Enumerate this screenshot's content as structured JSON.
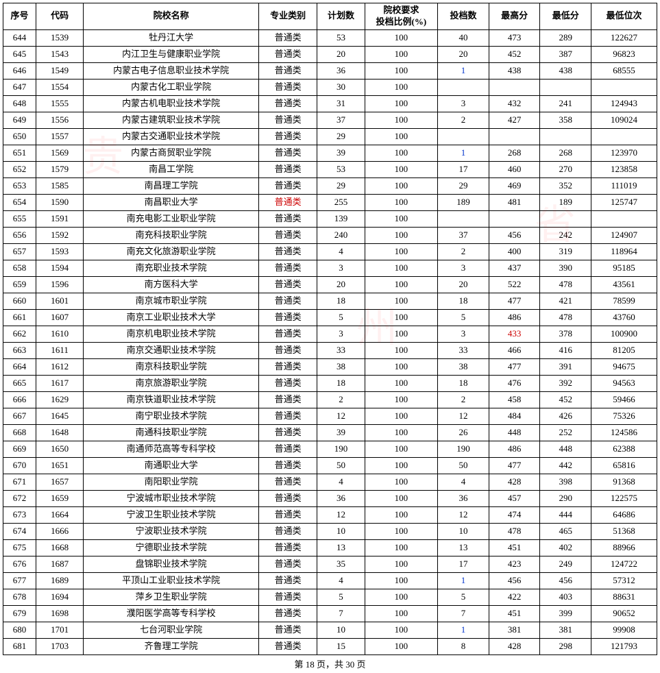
{
  "columns": [
    "序号",
    "代码",
    "院校名称",
    "专业类别",
    "计划数",
    "院校要求\n投档比例(%)",
    "投档数",
    "最高分",
    "最低分",
    "最低位次"
  ],
  "rows": [
    {
      "seq": "644",
      "code": "1539",
      "name": "牡丹江大学",
      "major": "普通类",
      "plan": "53",
      "ratio": "100",
      "toudang": "40",
      "max": "473",
      "min": "289",
      "rank": "122627"
    },
    {
      "seq": "645",
      "code": "1543",
      "name": "内江卫生与健康职业学院",
      "major": "普通类",
      "plan": "20",
      "ratio": "100",
      "toudang": "20",
      "max": "452",
      "min": "387",
      "rank": "96823"
    },
    {
      "seq": "646",
      "code": "1549",
      "name": "内蒙古电子信息职业技术学院",
      "major": "普通类",
      "plan": "36",
      "ratio": "100",
      "toudang": "1",
      "toudang_link": true,
      "max": "438",
      "min": "438",
      "rank": "68555"
    },
    {
      "seq": "647",
      "code": "1554",
      "name": "内蒙古化工职业学院",
      "major": "普通类",
      "plan": "30",
      "ratio": "100",
      "toudang": "",
      "max": "",
      "min": "",
      "rank": ""
    },
    {
      "seq": "648",
      "code": "1555",
      "name": "内蒙古机电职业技术学院",
      "major": "普通类",
      "plan": "31",
      "ratio": "100",
      "toudang": "3",
      "max": "432",
      "min": "241",
      "rank": "124943"
    },
    {
      "seq": "649",
      "code": "1556",
      "name": "内蒙古建筑职业技术学院",
      "major": "普通类",
      "plan": "37",
      "ratio": "100",
      "toudang": "2",
      "max": "427",
      "min": "358",
      "rank": "109024"
    },
    {
      "seq": "650",
      "code": "1557",
      "name": "内蒙古交通职业技术学院",
      "major": "普通类",
      "plan": "29",
      "ratio": "100",
      "toudang": "",
      "max": "",
      "min": "",
      "rank": ""
    },
    {
      "seq": "651",
      "code": "1569",
      "name": "内蒙古商贸职业学院",
      "major": "普通类",
      "plan": "39",
      "ratio": "100",
      "toudang": "1",
      "toudang_link": true,
      "max": "268",
      "min": "268",
      "rank": "123970"
    },
    {
      "seq": "652",
      "code": "1579",
      "name": "南昌工学院",
      "major": "普通类",
      "plan": "53",
      "ratio": "100",
      "toudang": "17",
      "max": "460",
      "min": "270",
      "rank": "123858"
    },
    {
      "seq": "653",
      "code": "1585",
      "name": "南昌理工学院",
      "major": "普通类",
      "plan": "29",
      "ratio": "100",
      "toudang": "29",
      "max": "469",
      "min": "352",
      "rank": "111019"
    },
    {
      "seq": "654",
      "code": "1590",
      "name": "南昌职业大学",
      "major": "普通类",
      "major_red": true,
      "plan": "255",
      "ratio": "100",
      "toudang": "189",
      "max": "481",
      "min": "189",
      "rank": "125747"
    },
    {
      "seq": "655",
      "code": "1591",
      "name": "南充电影工业职业学院",
      "major": "普通类",
      "plan": "139",
      "ratio": "100",
      "toudang": "",
      "max": "",
      "min": "",
      "rank": ""
    },
    {
      "seq": "656",
      "code": "1592",
      "name": "南充科技职业学院",
      "major": "普通类",
      "plan": "240",
      "ratio": "100",
      "toudang": "37",
      "max": "456",
      "min": "242",
      "rank": "124907"
    },
    {
      "seq": "657",
      "code": "1593",
      "name": "南充文化旅游职业学院",
      "major": "普通类",
      "plan": "4",
      "ratio": "100",
      "toudang": "2",
      "max": "400",
      "min": "319",
      "rank": "118964"
    },
    {
      "seq": "658",
      "code": "1594",
      "name": "南充职业技术学院",
      "major": "普通类",
      "plan": "3",
      "ratio": "100",
      "toudang": "3",
      "max": "437",
      "min": "390",
      "rank": "95185"
    },
    {
      "seq": "659",
      "code": "1596",
      "name": "南方医科大学",
      "major": "普通类",
      "plan": "20",
      "ratio": "100",
      "toudang": "20",
      "max": "522",
      "min": "478",
      "rank": "43561"
    },
    {
      "seq": "660",
      "code": "1601",
      "name": "南京城市职业学院",
      "major": "普通类",
      "plan": "18",
      "ratio": "100",
      "toudang": "18",
      "max": "477",
      "min": "421",
      "rank": "78599"
    },
    {
      "seq": "661",
      "code": "1607",
      "name": "南京工业职业技术大学",
      "major": "普通类",
      "plan": "5",
      "ratio": "100",
      "toudang": "5",
      "max": "486",
      "min": "478",
      "rank": "43760"
    },
    {
      "seq": "662",
      "code": "1610",
      "name": "南京机电职业技术学院",
      "major": "普通类",
      "plan": "3",
      "ratio": "100",
      "toudang": "3",
      "max": "433",
      "max_red": true,
      "min": "378",
      "rank": "100900"
    },
    {
      "seq": "663",
      "code": "1611",
      "name": "南京交通职业技术学院",
      "major": "普通类",
      "plan": "33",
      "ratio": "100",
      "toudang": "33",
      "max": "466",
      "min": "416",
      "rank": "81205"
    },
    {
      "seq": "664",
      "code": "1612",
      "name": "南京科技职业学院",
      "major": "普通类",
      "plan": "38",
      "ratio": "100",
      "toudang": "38",
      "max": "477",
      "min": "391",
      "rank": "94675"
    },
    {
      "seq": "665",
      "code": "1617",
      "name": "南京旅游职业学院",
      "major": "普通类",
      "plan": "18",
      "ratio": "100",
      "toudang": "18",
      "max": "476",
      "min": "392",
      "rank": "94563"
    },
    {
      "seq": "666",
      "code": "1629",
      "name": "南京铁道职业技术学院",
      "major": "普通类",
      "plan": "2",
      "ratio": "100",
      "toudang": "2",
      "max": "458",
      "min": "452",
      "rank": "59466"
    },
    {
      "seq": "667",
      "code": "1645",
      "name": "南宁职业技术学院",
      "major": "普通类",
      "plan": "12",
      "ratio": "100",
      "toudang": "12",
      "max": "484",
      "min": "426",
      "rank": "75326"
    },
    {
      "seq": "668",
      "code": "1648",
      "name": "南通科技职业学院",
      "major": "普通类",
      "plan": "39",
      "ratio": "100",
      "toudang": "26",
      "max": "448",
      "min": "252",
      "rank": "124586"
    },
    {
      "seq": "669",
      "code": "1650",
      "name": "南通师范高等专科学校",
      "major": "普通类",
      "plan": "190",
      "ratio": "100",
      "toudang": "190",
      "max": "486",
      "min": "448",
      "rank": "62388"
    },
    {
      "seq": "670",
      "code": "1651",
      "name": "南通职业大学",
      "major": "普通类",
      "plan": "50",
      "ratio": "100",
      "toudang": "50",
      "max": "477",
      "min": "442",
      "rank": "65816"
    },
    {
      "seq": "671",
      "code": "1657",
      "name": "南阳职业学院",
      "major": "普通类",
      "plan": "4",
      "ratio": "100",
      "toudang": "4",
      "max": "428",
      "min": "398",
      "rank": "91368"
    },
    {
      "seq": "672",
      "code": "1659",
      "name": "宁波城市职业技术学院",
      "major": "普通类",
      "plan": "36",
      "ratio": "100",
      "toudang": "36",
      "max": "457",
      "min": "290",
      "rank": "122575"
    },
    {
      "seq": "673",
      "code": "1664",
      "name": "宁波卫生职业技术学院",
      "major": "普通类",
      "plan": "12",
      "ratio": "100",
      "toudang": "12",
      "max": "474",
      "min": "444",
      "rank": "64686"
    },
    {
      "seq": "674",
      "code": "1666",
      "name": "宁波职业技术学院",
      "major": "普通类",
      "plan": "10",
      "ratio": "100",
      "toudang": "10",
      "max": "478",
      "min": "465",
      "rank": "51368"
    },
    {
      "seq": "675",
      "code": "1668",
      "name": "宁德职业技术学院",
      "major": "普通类",
      "plan": "13",
      "ratio": "100",
      "toudang": "13",
      "max": "451",
      "min": "402",
      "rank": "88966"
    },
    {
      "seq": "676",
      "code": "1687",
      "name": "盘锦职业技术学院",
      "major": "普通类",
      "plan": "35",
      "ratio": "100",
      "toudang": "17",
      "max": "423",
      "min": "249",
      "rank": "124722"
    },
    {
      "seq": "677",
      "code": "1689",
      "name": "平顶山工业职业技术学院",
      "major": "普通类",
      "plan": "4",
      "ratio": "100",
      "toudang": "1",
      "toudang_link": true,
      "max": "456",
      "min": "456",
      "rank": "57312"
    },
    {
      "seq": "678",
      "code": "1694",
      "name": "萍乡卫生职业学院",
      "major": "普通类",
      "plan": "5",
      "ratio": "100",
      "toudang": "5",
      "max": "422",
      "min": "403",
      "rank": "88631"
    },
    {
      "seq": "679",
      "code": "1698",
      "name": "濮阳医学高等专科学校",
      "major": "普通类",
      "plan": "7",
      "ratio": "100",
      "toudang": "7",
      "max": "451",
      "min": "399",
      "rank": "90652"
    },
    {
      "seq": "680",
      "code": "1701",
      "name": "七台河职业学院",
      "major": "普通类",
      "plan": "10",
      "ratio": "100",
      "toudang": "1",
      "toudang_link": true,
      "max": "381",
      "min": "381",
      "rank": "99908"
    },
    {
      "seq": "681",
      "code": "1703",
      "name": "齐鲁理工学院",
      "major": "普通类",
      "plan": "15",
      "ratio": "100",
      "toudang": "8",
      "max": "428",
      "min": "298",
      "rank": "121793"
    }
  ],
  "footer": "第 18 页，共 30 页",
  "watermarks": [
    "贵",
    "州",
    "省"
  ]
}
